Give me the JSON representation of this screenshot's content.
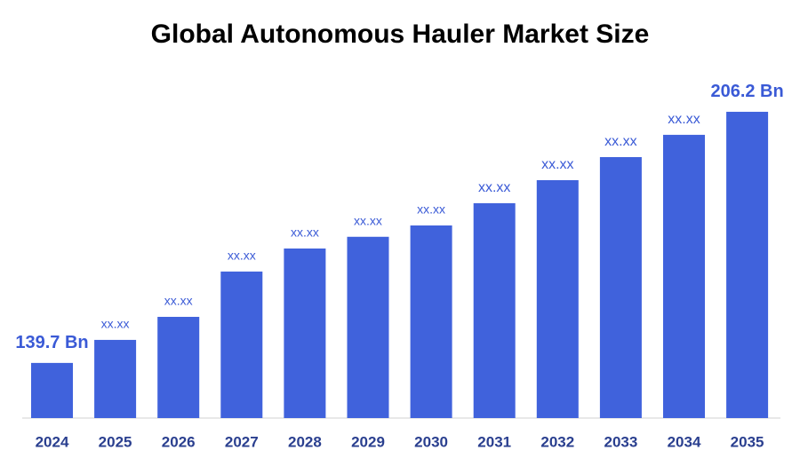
{
  "chart_data": {
    "type": "bar",
    "title": "Global Autonomous Hauler Market Size",
    "categories": [
      "2024",
      "2025",
      "2026",
      "2027",
      "2028",
      "2029",
      "2030",
      "2031",
      "2032",
      "2033",
      "2034",
      "2035"
    ],
    "values": [
      139.7,
      145.8,
      151.9,
      163.9,
      170.0,
      173.1,
      176.1,
      182.0,
      188.1,
      194.2,
      200.1,
      206.2
    ],
    "value_labels": [
      "139.7 Bn",
      "xx.xx",
      "xx.xx",
      "xx.xx",
      "xx.xx",
      "xx.xx",
      "xx.xx",
      "xx.xx",
      "xx.xx",
      "xx.xx",
      "xx.xx",
      "206.2 Bn"
    ],
    "color": "#4062dc",
    "ylim": [
      125.1,
      215
    ]
  }
}
